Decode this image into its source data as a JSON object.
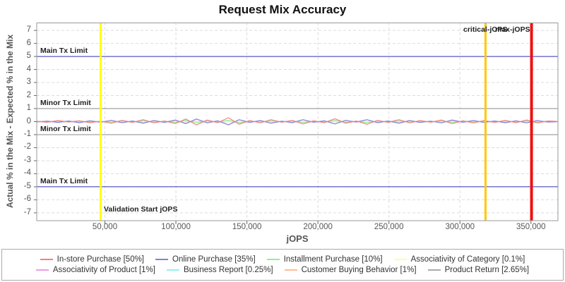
{
  "title": "Request Mix Accuracy",
  "annotations": {
    "note": "labels rendered inside plot come from chart_data.limit_lines and chart_data.marker_lines"
  },
  "chart_data": {
    "type": "line",
    "title": "Request Mix Accuracy",
    "xlabel": "jOPS",
    "ylabel": "Actual % in the Mix - Expected % in the Mix",
    "xlim": [
      2000,
      369000
    ],
    "ylim": [
      -7.6,
      7.6
    ],
    "grid": true,
    "legend_position": "bottom",
    "xticks": {
      "values": [
        50000,
        100000,
        150000,
        200000,
        250000,
        300000,
        350000
      ],
      "labels": [
        "50,000",
        "100,000",
        "150,000",
        "200,000",
        "250,000",
        "300,000",
        "350,000"
      ]
    },
    "yticks": [
      7,
      6,
      5,
      4,
      3,
      2,
      1,
      0,
      -1,
      -2,
      -3,
      -4,
      -5,
      -6,
      -7
    ],
    "limit_lines": [
      {
        "y": 5,
        "label": "Main Tx Limit",
        "color": "#3333BB"
      },
      {
        "y": 1,
        "label": "Minor Tx Limit",
        "color": "#888888"
      },
      {
        "y": -1,
        "label": "Minor Tx Limit",
        "color": "#888888"
      },
      {
        "y": -5,
        "label": "Main Tx Limit",
        "color": "#3333BB"
      },
      {
        "y": 0,
        "label": "",
        "color": "#BB5555"
      }
    ],
    "marker_lines": [
      {
        "x": 47000,
        "label": "Validation Start jOPS",
        "color": "#FFFF00",
        "width": 3
      },
      {
        "x": 318000,
        "label": "critical-jOPS",
        "color": "#FFC800",
        "width": 3
      },
      {
        "x": 350400,
        "label": "max-jOPS",
        "color": "#EE1111",
        "width": 4
      }
    ],
    "x": [
      2000,
      9500,
      17000,
      24500,
      32000,
      39500,
      47000,
      54500,
      62000,
      69500,
      77000,
      84500,
      92000,
      99500,
      107000,
      114500,
      122000,
      129500,
      137000,
      144500,
      152000,
      159500,
      167000,
      174500,
      182000,
      189500,
      197000,
      204500,
      212000,
      219500,
      227000,
      234500,
      242000,
      249500,
      257000,
      264500,
      272000,
      279500,
      287000,
      294500,
      302000,
      309500,
      317000,
      324500,
      332000,
      339500,
      347000,
      354500,
      362000,
      368000
    ],
    "series": [
      {
        "name": "In-store Purchase [50%]",
        "color": "#F08080",
        "values": [
          0.02,
          -0.05,
          0.08,
          -0.03,
          0.06,
          -0.08,
          0.04,
          -0.12,
          0.1,
          -0.06,
          0.15,
          -0.1,
          0.05,
          -0.15,
          0.2,
          -0.25,
          0.12,
          -0.08,
          0.3,
          -0.2,
          0.08,
          -0.1,
          0.15,
          -0.05,
          0.1,
          -0.18,
          0.06,
          -0.08,
          0.22,
          -0.12,
          0.05,
          -0.2,
          0.1,
          -0.06,
          0.15,
          -0.1,
          0.08,
          -0.05,
          0.12,
          -0.15,
          0.06,
          -0.1,
          0.08,
          -0.06,
          0.1,
          -0.08,
          0.12,
          -0.1,
          0.05,
          0.02
        ]
      },
      {
        "name": "Online Purchase [35%]",
        "color": "#8080D8",
        "values": [
          -0.02,
          0.04,
          -0.06,
          0.05,
          -0.08,
          0.06,
          -0.05,
          0.1,
          -0.08,
          0.05,
          -0.12,
          0.08,
          -0.06,
          0.12,
          -0.15,
          0.2,
          -0.1,
          0.06,
          -0.25,
          0.15,
          -0.06,
          0.08,
          -0.12,
          0.04,
          -0.08,
          0.15,
          -0.05,
          0.06,
          -0.18,
          0.1,
          -0.04,
          0.15,
          -0.08,
          0.05,
          -0.12,
          0.08,
          -0.06,
          0.04,
          -0.1,
          0.12,
          -0.05,
          0.08,
          -0.06,
          0.05,
          -0.08,
          0.06,
          -0.1,
          0.08,
          -0.04,
          -0.01
        ]
      },
      {
        "name": "Installment Purchase [10%]",
        "color": "#90EE90",
        "values": [
          0.01,
          -0.02,
          0.03,
          -0.02,
          0.04,
          -0.03,
          0.02,
          -0.04,
          0.05,
          -0.03,
          0.06,
          -0.04,
          0.03,
          -0.05,
          0.08,
          -0.06,
          0.04,
          -0.03,
          0.1,
          -0.08,
          0.03,
          -0.04,
          0.06,
          -0.02,
          0.04,
          -0.06,
          0.02,
          -0.03,
          0.08,
          -0.05,
          0.02,
          -0.06,
          0.04,
          -0.02,
          0.05,
          -0.04,
          0.03,
          -0.02,
          0.04,
          -0.05,
          0.02,
          -0.03,
          0.03,
          -0.02,
          0.04,
          -0.03,
          0.04,
          -0.03,
          0.02,
          0.01
        ]
      },
      {
        "name": "Associativity of Category [0.1%]",
        "color": "#FFFF99",
        "const": 0
      },
      {
        "name": "Associativity of Product [1%]",
        "color": "#EE9AE5",
        "const": 0
      },
      {
        "name": "Business Report [0.25%]",
        "color": "#99EEEE",
        "const": 0
      },
      {
        "name": "Customer Buying Behavior [1%]",
        "color": "#FFBB99",
        "const": 0
      },
      {
        "name": "Product Return [2.65%]",
        "color": "#AAAAAA",
        "const": 0
      }
    ]
  },
  "legend": {
    "rows": [
      [
        "In-store Purchase [50%]",
        "Online Purchase [35%]",
        "Installment Purchase [10%]",
        "Associativity of Category [0.1%]"
      ],
      [
        "Associativity of Product [1%]",
        "Business Report [0.25%]",
        "Customer Buying Behavior [1%]",
        "Product Return [2.65%]"
      ]
    ]
  }
}
